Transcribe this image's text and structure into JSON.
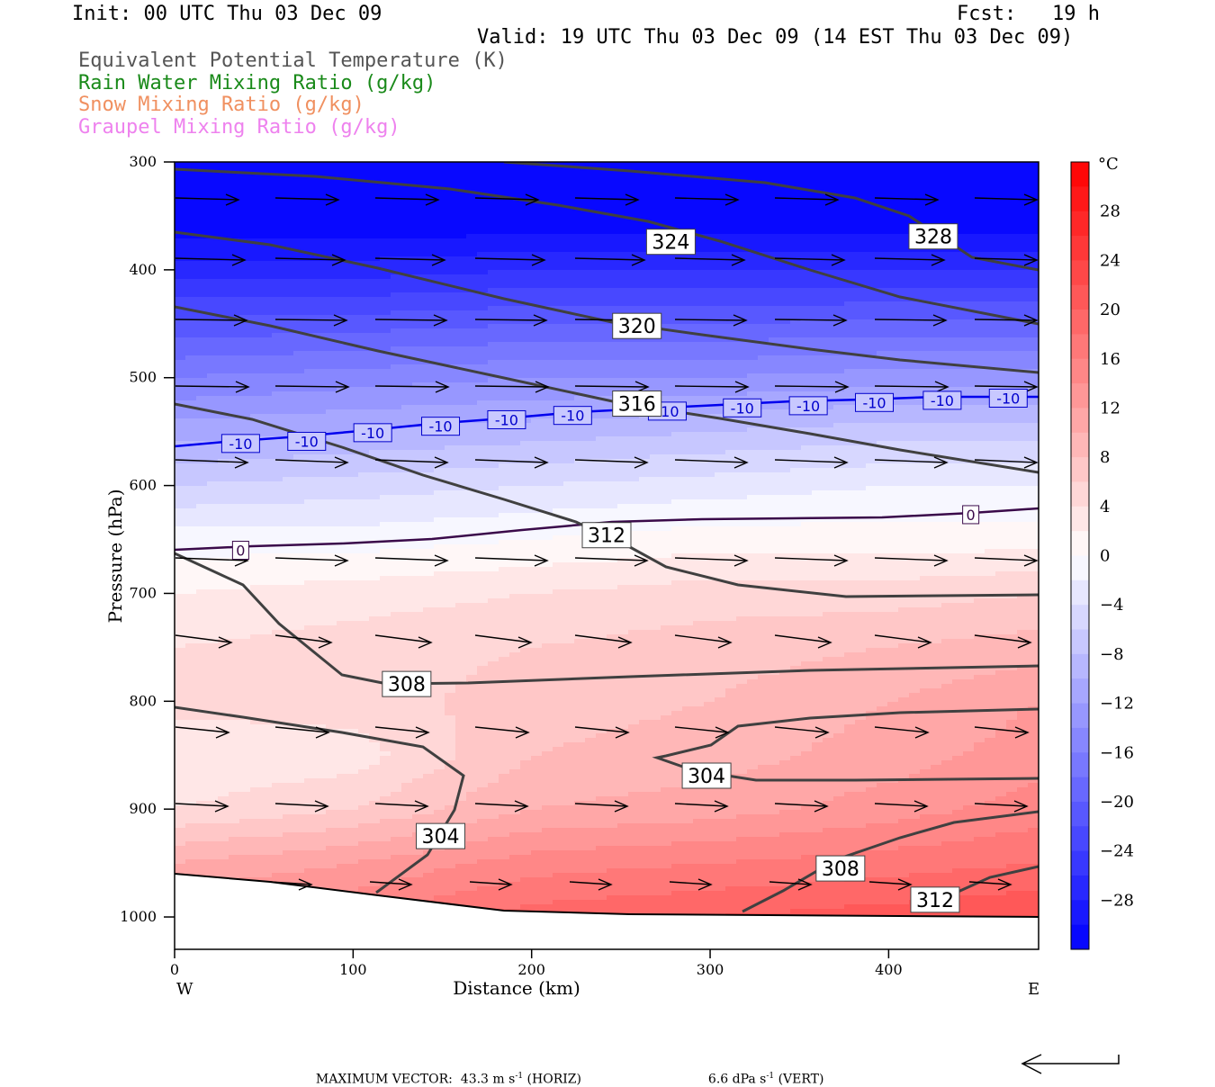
{
  "header": {
    "init": "Init: 00 UTC Thu 03 Dec 09",
    "fcst": "Fcst:   19 h",
    "valid": "Valid: 19 UTC Thu 03 Dec 09 (14 EST Thu 03 Dec 09)",
    "fields": [
      {
        "label": "Equivalent Potential Temperature (K)",
        "color": "#555555"
      },
      {
        "label": "Rain Water Mixing Ratio (g/kg)",
        "color": "#1a8a1a"
      },
      {
        "label": "Snow Mixing Ratio (g/kg)",
        "color": "#f09060"
      },
      {
        "label": "Graupel Mixing Ratio (g/kg)",
        "color": "#ee82ee"
      }
    ]
  },
  "footer": {
    "max_vector": "MAXIMUM VECTOR:  43.3 m s",
    "sup1": "-1",
    "horiz": " (HORIZ)",
    "vert_value": "6.6 dPa s",
    "sup2": "-1",
    "vert": " (VERT)"
  },
  "chart_data": {
    "type": "contour",
    "xlabel": "Distance (km)",
    "ylabel": "Pressure (hPa)",
    "xlim": [
      0,
      484
    ],
    "ylim": [
      1030,
      300
    ],
    "x_ticks": [
      0,
      100,
      200,
      300,
      400
    ],
    "y_ticks": [
      300,
      400,
      500,
      600,
      700,
      800,
      900,
      1000
    ],
    "x_end_labels": {
      "left": "W",
      "right": "E"
    },
    "colorbar": {
      "unit": "°C",
      "range": [
        -32,
        32
      ],
      "step": 2,
      "tick_labels": [
        28,
        24,
        20,
        16,
        12,
        8,
        4,
        0,
        -4,
        -8,
        -12,
        -16,
        -20,
        -24,
        -28
      ],
      "cold_color": "#0000ff",
      "warm_color": "#ff0000"
    },
    "temperature_field_c": {
      "x": [
        0,
        100,
        200,
        300,
        400,
        484
      ],
      "p": [
        300,
        400,
        500,
        550,
        600,
        650,
        700,
        750,
        800,
        850,
        900,
        950,
        1000
      ],
      "values": [
        [
          -38,
          -38,
          -38,
          -38,
          -38,
          -38
        ],
        [
          -27,
          -27,
          -26,
          -26,
          -26,
          -26
        ],
        [
          -16,
          -15,
          -14,
          -14,
          -13,
          -13
        ],
        [
          -11,
          -10,
          -9,
          -8,
          -7,
          -7
        ],
        [
          -6,
          -5,
          -4,
          -3,
          -2,
          -2
        ],
        [
          -1,
          -1,
          0,
          1,
          1,
          1
        ],
        [
          2,
          3,
          4,
          5,
          5,
          6
        ],
        [
          4,
          5,
          6,
          7,
          8,
          9
        ],
        [
          5,
          5,
          7,
          8,
          10,
          12
        ],
        [
          2,
          3,
          8,
          9,
          11,
          13
        ],
        [
          4,
          6,
          10,
          11,
          13,
          15
        ],
        [
          10,
          12,
          15,
          16,
          17,
          18
        ],
        [
          14,
          16,
          19,
          20,
          21,
          22
        ]
      ]
    },
    "isotherm_labels": [
      {
        "value": "-10",
        "x": 37,
        "p": 561
      },
      {
        "value": "-10",
        "x": 74,
        "p": 559
      },
      {
        "value": "-10",
        "x": 111,
        "p": 551
      },
      {
        "value": "-10",
        "x": 149,
        "p": 545
      },
      {
        "value": "-10",
        "x": 186,
        "p": 539
      },
      {
        "value": "-10",
        "x": 223,
        "p": 535
      },
      {
        "value": "-10",
        "x": 276,
        "p": 531
      },
      {
        "value": "-10",
        "x": 318,
        "p": 528
      },
      {
        "value": "-10",
        "x": 355,
        "p": 526
      },
      {
        "value": "-10",
        "x": 392,
        "p": 523
      },
      {
        "value": "-10",
        "x": 430,
        "p": 521
      },
      {
        "value": "-10",
        "x": 467,
        "p": 519
      },
      {
        "value": "0",
        "x": 37,
        "p": 660
      },
      {
        "value": "0",
        "x": 446,
        "p": 627
      }
    ],
    "theta_e_labels": [
      {
        "value": "324",
        "x": 278,
        "p": 374
      },
      {
        "value": "328",
        "x": 425,
        "p": 369
      },
      {
        "value": "320",
        "x": 259,
        "p": 452
      },
      {
        "value": "316",
        "x": 259,
        "p": 524
      },
      {
        "value": "312",
        "x": 242,
        "p": 646
      },
      {
        "value": "308",
        "x": 130,
        "p": 784
      },
      {
        "value": "304",
        "x": 298,
        "p": 869
      },
      {
        "value": "304",
        "x": 149,
        "p": 925
      },
      {
        "value": "308",
        "x": 373,
        "p": 955
      },
      {
        "value": "312",
        "x": 426,
        "p": 984
      }
    ]
  }
}
